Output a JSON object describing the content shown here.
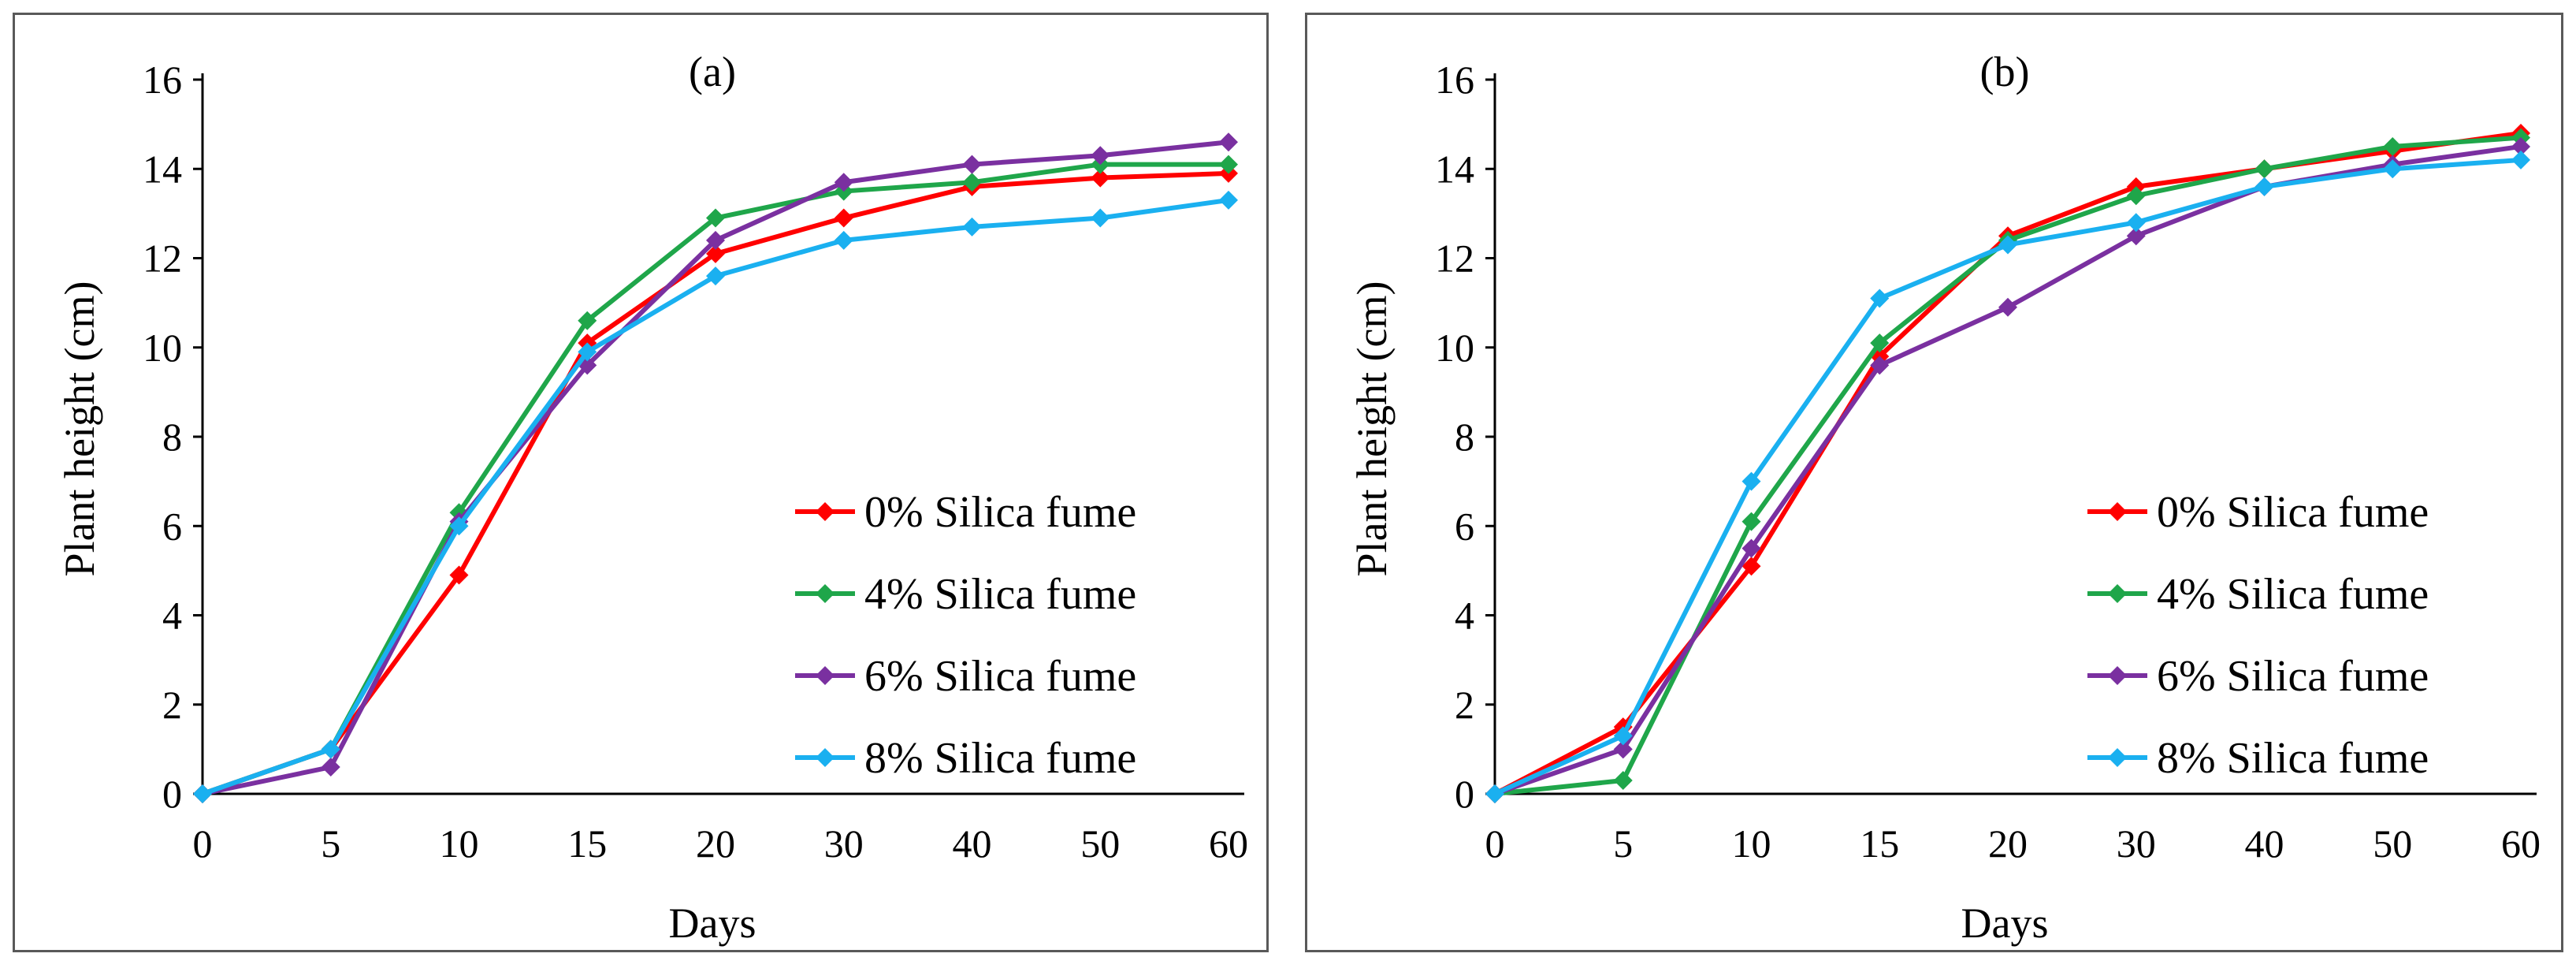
{
  "chart_data": [
    {
      "type": "line",
      "title": "(a)",
      "xlabel": "Days",
      "ylabel": "Plant height (cm)",
      "categories": [
        "0",
        "5",
        "10",
        "15",
        "20",
        "30",
        "40",
        "50",
        "60"
      ],
      "ylim": [
        0,
        16
      ],
      "yticks": [
        "0",
        "2",
        "4",
        "6",
        "8",
        "10",
        "12",
        "14",
        "16"
      ],
      "legend_position": "lower-right",
      "series": [
        {
          "name": "0% Silica fume",
          "color": "#ff0000",
          "values": [
            0,
            1.0,
            4.9,
            10.1,
            12.1,
            12.9,
            13.6,
            13.8,
            13.9
          ]
        },
        {
          "name": "4% Silica fume",
          "color": "#1fa64a",
          "values": [
            0,
            1.0,
            6.3,
            10.6,
            12.9,
            13.5,
            13.7,
            14.1,
            14.1
          ]
        },
        {
          "name": "6% Silica fume",
          "color": "#7a30a0",
          "values": [
            0,
            0.6,
            6.1,
            9.6,
            12.4,
            13.7,
            14.1,
            14.3,
            14.6
          ]
        },
        {
          "name": "8% Silica fume",
          "color": "#1ab0f0",
          "values": [
            0,
            1.0,
            6.0,
            9.9,
            11.6,
            12.4,
            12.7,
            12.9,
            13.3
          ]
        }
      ]
    },
    {
      "type": "line",
      "title": "(b)",
      "xlabel": "Days",
      "ylabel": "Plant height (cm)",
      "categories": [
        "0",
        "5",
        "10",
        "15",
        "20",
        "30",
        "40",
        "50",
        "60"
      ],
      "ylim": [
        0,
        16
      ],
      "yticks": [
        "0",
        "2",
        "4",
        "6",
        "8",
        "10",
        "12",
        "14",
        "16"
      ],
      "legend_position": "lower-right",
      "series": [
        {
          "name": "0% Silica fume",
          "color": "#ff0000",
          "values": [
            0,
            1.5,
            5.1,
            9.8,
            12.5,
            13.6,
            14.0,
            14.4,
            14.8
          ]
        },
        {
          "name": "4% Silica fume",
          "color": "#1fa64a",
          "values": [
            0,
            0.3,
            6.1,
            10.1,
            12.4,
            13.4,
            14.0,
            14.5,
            14.7
          ]
        },
        {
          "name": "6% Silica fume",
          "color": "#7a30a0",
          "values": [
            0,
            1.0,
            5.5,
            9.6,
            10.9,
            12.5,
            13.6,
            14.1,
            14.5
          ]
        },
        {
          "name": "8% Silica fume",
          "color": "#1ab0f0",
          "values": [
            0,
            1.3,
            7.0,
            11.1,
            12.3,
            12.8,
            13.6,
            14.0,
            14.2
          ]
        }
      ]
    }
  ]
}
